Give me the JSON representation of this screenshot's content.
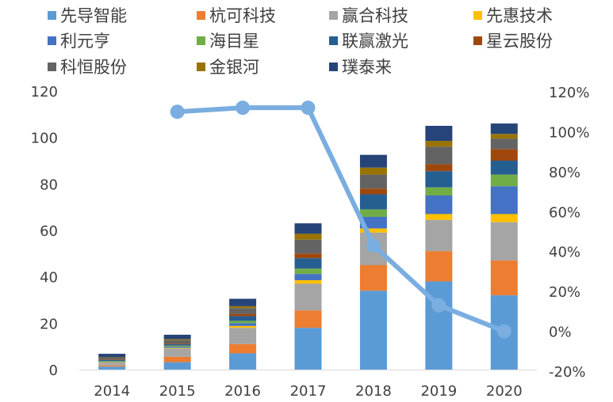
{
  "chart_data": {
    "type": "bar",
    "stacked": true,
    "categories": [
      "2014",
      "2015",
      "2016",
      "2017",
      "2018",
      "2019",
      "2020"
    ],
    "ylim": [
      0,
      120
    ],
    "y_ticks": [
      "0",
      "20",
      "40",
      "60",
      "80",
      "100",
      "120"
    ],
    "y2lim": [
      -20,
      120
    ],
    "y2_ticks": [
      "-20%",
      "0%",
      "20%",
      "40%",
      "60%",
      "80%",
      "100%",
      "120%"
    ],
    "legend_position": "top",
    "grid": false,
    "series": [
      {
        "name": "先导智能",
        "color": "#5b9bd5",
        "values": [
          1.3,
          3.2,
          7.0,
          18.0,
          34.0,
          38.0,
          32.0
        ]
      },
      {
        "name": "杭可科技",
        "color": "#ed7d31",
        "values": [
          0.5,
          2.3,
          4.0,
          7.5,
          11.0,
          13.0,
          15.0
        ]
      },
      {
        "name": "赢合科技",
        "color": "#a5a5a5",
        "values": [
          1.2,
          3.5,
          7.0,
          11.5,
          14.0,
          13.5,
          16.5
        ]
      },
      {
        "name": "先惠技术",
        "color": "#ffc000",
        "values": [
          0.2,
          0.3,
          0.8,
          1.5,
          1.8,
          2.5,
          3.5
        ]
      },
      {
        "name": "利元亨",
        "color": "#4472c4",
        "values": [
          0.2,
          0.5,
          1.2,
          2.7,
          5.0,
          8.0,
          12.0
        ]
      },
      {
        "name": "海目星",
        "color": "#70ad47",
        "values": [
          0.3,
          0.5,
          1.0,
          2.3,
          3.2,
          3.5,
          5.0
        ]
      },
      {
        "name": "联赢激光",
        "color": "#255e91",
        "values": [
          0.4,
          0.6,
          2.0,
          4.5,
          6.5,
          7.0,
          6.0
        ]
      },
      {
        "name": "星云股份",
        "color": "#9e480e",
        "values": [
          0.2,
          0.3,
          1.0,
          2.0,
          2.5,
          3.0,
          5.0
        ]
      },
      {
        "name": "科恒股份",
        "color": "#636363",
        "values": [
          0.8,
          1.5,
          2.5,
          6.0,
          6.0,
          7.5,
          4.5
        ]
      },
      {
        "name": "金银河",
        "color": "#997300",
        "values": [
          0.2,
          0.4,
          0.8,
          2.5,
          3.0,
          2.5,
          2.0
        ]
      },
      {
        "name": "璞泰来",
        "color": "#264478",
        "values": [
          1.5,
          1.9,
          3.2,
          4.5,
          5.5,
          6.5,
          4.5
        ]
      }
    ],
    "line": {
      "color": "#7aade0",
      "axis": "right",
      "values": [
        null,
        1.1,
        1.12,
        1.12,
        0.43,
        0.13,
        0.0
      ]
    }
  }
}
